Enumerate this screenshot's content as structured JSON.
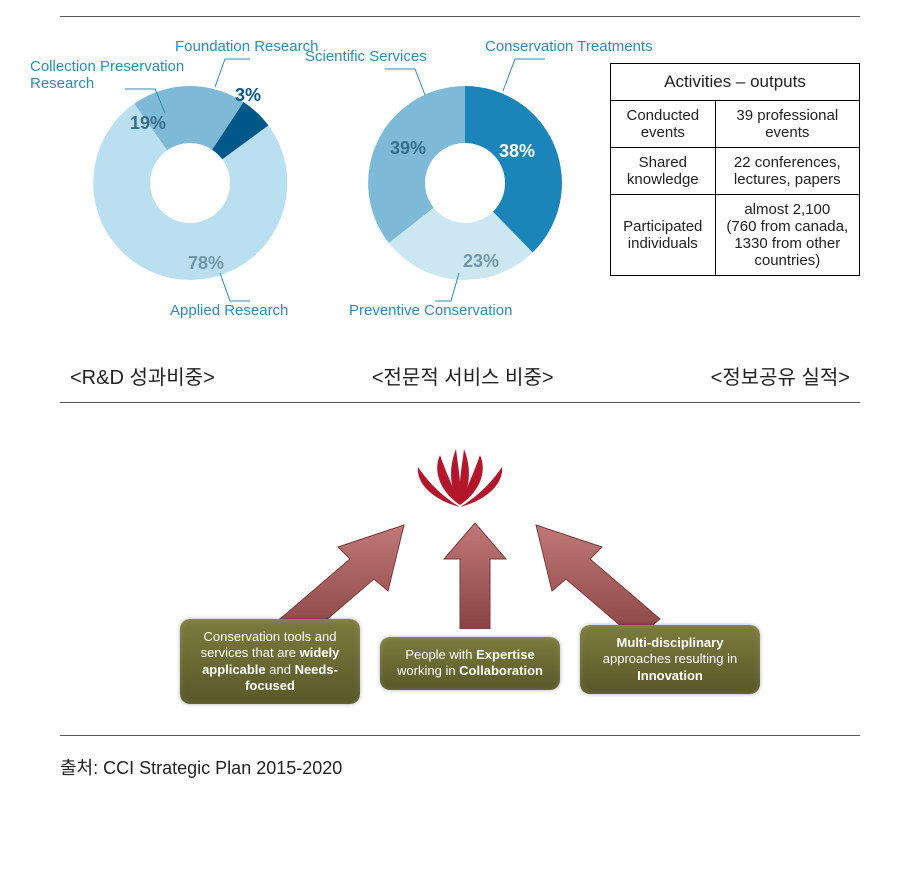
{
  "donut1": {
    "type": "donut",
    "callouts": {
      "top": "Foundation Research",
      "left": "Collection Preservation\nResearch",
      "bottom": "Applied Research"
    },
    "slices": [
      {
        "name": "collection_preservation",
        "value": 19,
        "color": "#7fb9d8",
        "pct_label": "19%",
        "pct_color": "#3a6d8a"
      },
      {
        "name": "foundation_research",
        "value": 3,
        "color": "#00578a",
        "pct_label": "3%",
        "pct_color": "#00578a"
      },
      {
        "name": "applied_research",
        "value": 78,
        "color": "#b9dff0",
        "pct_label": "78%",
        "pct_color": "#6f97ab"
      }
    ],
    "inner_ratio": 0.42,
    "start_angle_deg": -55,
    "label_font_size": 15,
    "pct_font_size": 18
  },
  "donut2": {
    "type": "donut",
    "callouts": {
      "top_left": "Scientific Services",
      "top_right": "Conservation Treatments",
      "bottom": "Preventive Conservation"
    },
    "slices": [
      {
        "name": "conservation_treatments",
        "value": 38,
        "color": "#1b84b8",
        "pct_label": "38%",
        "pct_color": "#ffffff"
      },
      {
        "name": "preventive_conservation",
        "value": 23,
        "color": "#cce7f2",
        "pct_label": "23%",
        "pct_color": "#6f97ab"
      },
      {
        "name": "scientific_services",
        "value": 39,
        "color": "#7fb9d8",
        "pct_label": "39%",
        "pct_color": "#3a6d8a"
      }
    ],
    "inner_ratio": 0.42,
    "start_angle_deg": 0,
    "label_font_size": 15,
    "pct_font_size": 18
  },
  "outputs_table": {
    "header": "Activities – outputs",
    "rows": [
      {
        "left": "Conducted\nevents",
        "right": "39 professional\nevents"
      },
      {
        "left": "Shared\nknowledge",
        "right": "22 conferences,\nlectures, papers"
      },
      {
        "left": "Participated\nindividuals",
        "right": "almost 2,100\n(760 from canada,\n1330 from other\ncountries)"
      }
    ],
    "border_color": "#000000",
    "font_size": 15,
    "header_font_size": 17
  },
  "captions": {
    "left": "<R&D 성과비중>",
    "mid": "<전문적 서비스 비중>",
    "right": "<정보공유 실적>"
  },
  "arrows_diagram": {
    "lotus_color": "#b3162b",
    "arrow_fill": "#a95555",
    "arrow_border": "#7a3a3a",
    "boxes": {
      "left": "Conservation tools and services that are <b>widely applicable</b> and <b>Needs-focused</b>",
      "center": "People with <b>Expertise</b> working in <b>Collaboration</b>",
      "right": "<b>Multi-disciplinary</b> approaches resulting in <b>Innovation</b>"
    },
    "box_bg_top": "#7d7c3e",
    "box_bg_bottom": "#585728",
    "box_font_size": 13,
    "box_text_color": "#ffffff"
  },
  "source": {
    "prefix": "출처:",
    "text": "CCI Strategic Plan 2015-2020"
  }
}
